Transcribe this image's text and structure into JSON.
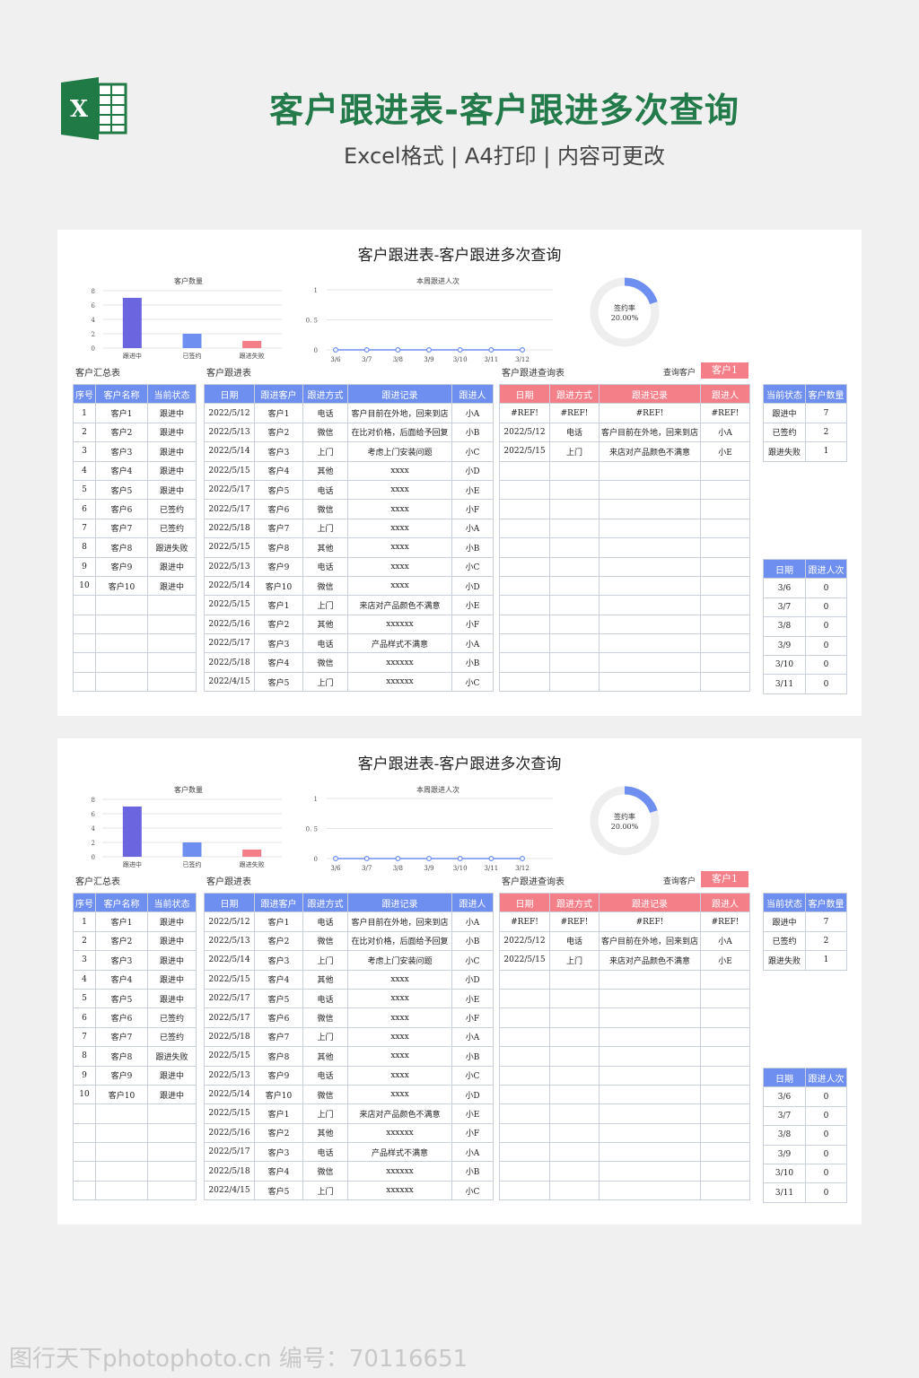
{
  "header": {
    "title": "客户跟进表-客户跟进多次查询",
    "subtitle": "Excel格式 | A4打印 | 内容可更改",
    "logo_letter": "X"
  },
  "sheet": {
    "title": "客户跟进表-客户跟进多次查询",
    "bar_chart": {
      "title": "客户数量",
      "type": "bar",
      "categories": [
        "跟进中",
        "已签约",
        "跟进失败"
      ],
      "values": [
        7,
        2,
        1
      ],
      "colors": [
        "#6b66e0",
        "#6f8ff0",
        "#f47f89"
      ],
      "yticks": [
        "0",
        "2",
        "4",
        "6",
        "8"
      ],
      "ylim": [
        0,
        8
      ]
    },
    "line_chart": {
      "title": "本周跟进人次",
      "type": "line",
      "categories": [
        "3/6",
        "3/7",
        "3/8",
        "3/9",
        "3/10",
        "3/11",
        "3/12"
      ],
      "values": [
        0,
        0,
        0,
        0,
        0,
        0,
        0
      ],
      "yticks": [
        "0",
        "0. 5",
        "1"
      ],
      "ylim": [
        0,
        1
      ],
      "color": "#6f8ff0"
    },
    "donut": {
      "label": "签约率",
      "value_text": "20.00%",
      "value": 0.2,
      "color": "#6f8ff0",
      "track": "#eeeeee"
    },
    "summary_label": "客户汇总表",
    "follow_label": "客户跟进表",
    "query_label": "客户跟进查询表",
    "query_field_label": "查询客户",
    "query_value": "客户1",
    "summary": {
      "headers": [
        "序号",
        "客户名称",
        "当前状态"
      ],
      "rows": [
        [
          "1",
          "客户1",
          "跟进中"
        ],
        [
          "2",
          "客户2",
          "跟进中"
        ],
        [
          "3",
          "客户3",
          "跟进中"
        ],
        [
          "4",
          "客户4",
          "跟进中"
        ],
        [
          "5",
          "客户5",
          "跟进中"
        ],
        [
          "6",
          "客户6",
          "已签约"
        ],
        [
          "7",
          "客户7",
          "已签约"
        ],
        [
          "8",
          "客户8",
          "跟进失败"
        ],
        [
          "9",
          "客户9",
          "跟进中"
        ],
        [
          "10",
          "客户10",
          "跟进中"
        ],
        [
          "",
          "",
          ""
        ],
        [
          "",
          "",
          ""
        ],
        [
          "",
          "",
          ""
        ],
        [
          "",
          "",
          ""
        ],
        [
          "",
          "",
          ""
        ]
      ]
    },
    "follow": {
      "headers": [
        "日期",
        "跟进客户",
        "跟进方式",
        "跟进记录",
        "跟进人"
      ],
      "rows": [
        [
          "2022/5/12",
          "客户1",
          "电话",
          "客户目前在外地，回来到店",
          "小A"
        ],
        [
          "2022/5/13",
          "客户2",
          "微信",
          "在比对价格，后面给予回复",
          "小B"
        ],
        [
          "2022/5/14",
          "客户3",
          "上门",
          "考虑上门安装问题",
          "小C"
        ],
        [
          "2022/5/15",
          "客户4",
          "其他",
          "xxxx",
          "小D"
        ],
        [
          "2022/5/17",
          "客户5",
          "电话",
          "xxxx",
          "小E"
        ],
        [
          "2022/5/17",
          "客户6",
          "微信",
          "xxxx",
          "小F"
        ],
        [
          "2022/5/18",
          "客户7",
          "上门",
          "xxxx",
          "小A"
        ],
        [
          "2022/5/15",
          "客户8",
          "其他",
          "xxxx",
          "小B"
        ],
        [
          "2022/5/13",
          "客户9",
          "电话",
          "xxxx",
          "小C"
        ],
        [
          "2022/5/14",
          "客户10",
          "微信",
          "xxxx",
          "小D"
        ],
        [
          "2022/5/15",
          "客户1",
          "上门",
          "来店对产品颜色不满意",
          "小E"
        ],
        [
          "2022/5/16",
          "客户2",
          "其他",
          "xxxxxx",
          "小F"
        ],
        [
          "2022/5/17",
          "客户3",
          "电话",
          "产品样式不满意",
          "小A"
        ],
        [
          "2022/5/18",
          "客户4",
          "微信",
          "xxxxxx",
          "小B"
        ],
        [
          "2022/4/15",
          "客户5",
          "上门",
          "xxxxxx",
          "小C"
        ]
      ]
    },
    "query": {
      "headers": [
        "日期",
        "跟进方式",
        "跟进记录",
        "跟进人"
      ],
      "rows": [
        [
          "#REF!",
          "#REF!",
          "#REF!",
          "#REF!"
        ],
        [
          "2022/5/12",
          "电话",
          "客户目前在外地，回来到店",
          "小A"
        ],
        [
          "2022/5/15",
          "上门",
          "来店对产品颜色不满意",
          "小E"
        ],
        [
          "",
          "",
          "",
          ""
        ],
        [
          "",
          "",
          "",
          ""
        ],
        [
          "",
          "",
          "",
          ""
        ],
        [
          "",
          "",
          "",
          ""
        ],
        [
          "",
          "",
          "",
          ""
        ],
        [
          "",
          "",
          "",
          ""
        ],
        [
          "",
          "",
          "",
          ""
        ],
        [
          "",
          "",
          "",
          ""
        ],
        [
          "",
          "",
          "",
          ""
        ],
        [
          "",
          "",
          "",
          ""
        ],
        [
          "",
          "",
          "",
          ""
        ],
        [
          "",
          "",
          "",
          ""
        ]
      ]
    },
    "status_count": {
      "headers": [
        "当前状态",
        "客户数量"
      ],
      "rows": [
        [
          "跟进中",
          "7"
        ],
        [
          "已签约",
          "2"
        ],
        [
          "跟进失败",
          "1"
        ]
      ]
    },
    "daily": {
      "headers": [
        "日期",
        "跟进人次"
      ],
      "rows": [
        [
          "3/6",
          "0"
        ],
        [
          "3/7",
          "0"
        ],
        [
          "3/8",
          "0"
        ],
        [
          "3/9",
          "0"
        ],
        [
          "3/10",
          "0"
        ],
        [
          "3/11",
          "0"
        ]
      ]
    }
  },
  "watermark": "图行天下photophoto.cn  编号：70116651"
}
